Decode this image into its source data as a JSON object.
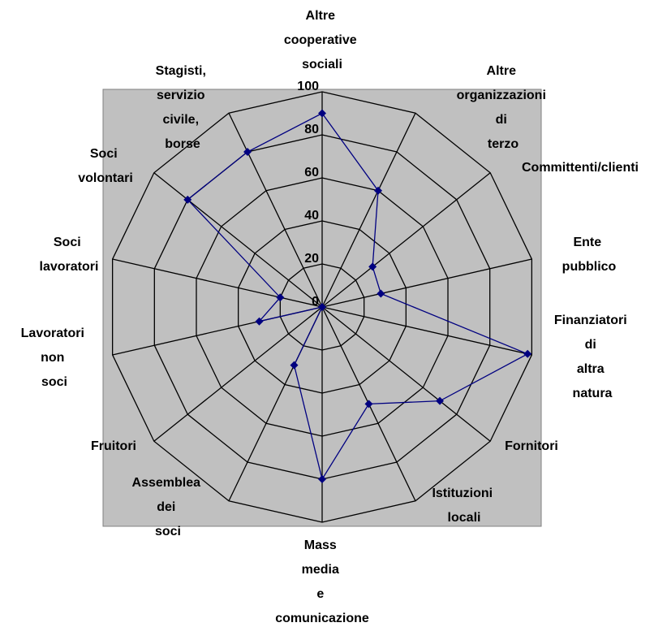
{
  "chart_data": {
    "type": "radar",
    "categories": [
      "Altre cooperative sociali",
      "Altre organizzazioni di terzo",
      "Committenti/clienti",
      "Ente pubblico",
      "Finanziatori di altra natura",
      "Fornitori",
      "Istituzioni locali",
      "Mass media e comunicazione",
      "Assemblea dei soci",
      "Fruitori",
      "Lavoratori non soci",
      "Soci lavoratori",
      "Soci volontari",
      "Stagisti, servizio civile, borse"
    ],
    "values": [
      90,
      60,
      30,
      28,
      98,
      70,
      50,
      80,
      30,
      0,
      30,
      20,
      80,
      80
    ],
    "color": "#000080",
    "ylim": [
      0,
      100
    ],
    "yticks": [
      0,
      20,
      40,
      60,
      80,
      100
    ],
    "grid": true
  }
}
